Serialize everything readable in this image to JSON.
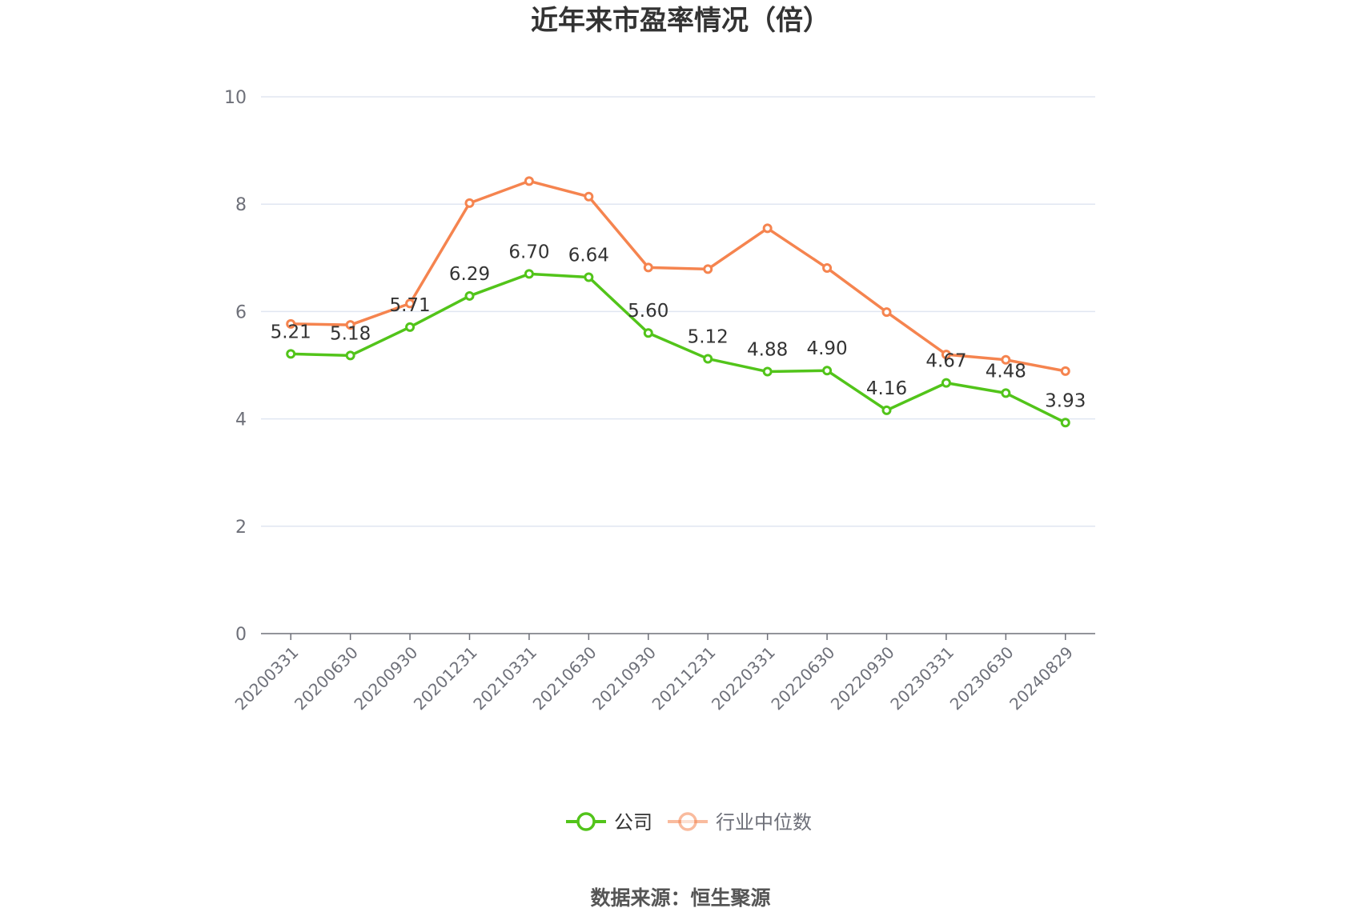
{
  "chart_data": {
    "type": "line",
    "title": "近年来市盈率情况（倍）",
    "categories": [
      "20200331",
      "20200630",
      "20200930",
      "20201231",
      "20210331",
      "20210630",
      "20210930",
      "20211231",
      "20220331",
      "20220630",
      "20220930",
      "20230331",
      "20230630",
      "20240829"
    ],
    "series": [
      {
        "name": "公司",
        "color": "#52c41a",
        "values": [
          5.21,
          5.18,
          5.71,
          6.29,
          6.7,
          6.64,
          5.6,
          5.12,
          4.88,
          4.9,
          4.16,
          4.67,
          4.48,
          3.93
        ],
        "labels": [
          "5.21",
          "5.18",
          "5.71",
          "6.29",
          "6.70",
          "6.64",
          "5.60",
          "5.12",
          "4.88",
          "4.90",
          "4.16",
          "4.67",
          "4.48",
          "3.93"
        ]
      },
      {
        "name": "行业中位数",
        "color": "#f5844f",
        "values": [
          5.77,
          5.75,
          6.15,
          8.02,
          8.43,
          8.14,
          6.82,
          6.79,
          7.55,
          6.81,
          5.99,
          5.2,
          5.1,
          4.89
        ]
      }
    ],
    "yticks": [
      "0",
      "2",
      "4",
      "6",
      "8",
      "10"
    ],
    "ylim": [
      0,
      10
    ],
    "grid": true,
    "legend_position": "bottom"
  },
  "source_text": "数据来源：恒生聚源"
}
